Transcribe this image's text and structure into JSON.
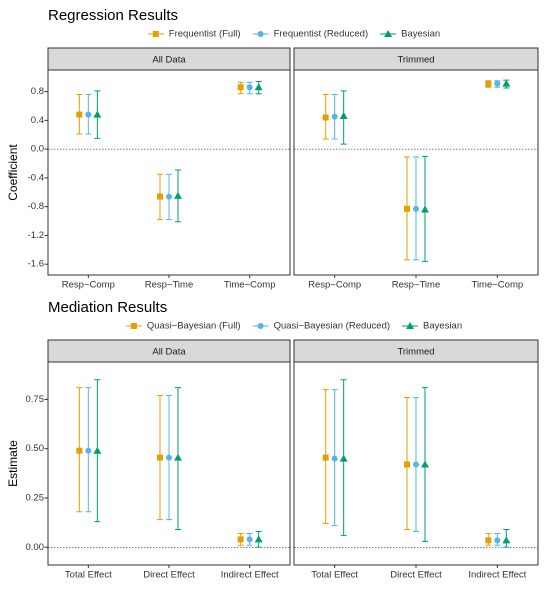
{
  "chart_data": [
    {
      "type": "pointrange",
      "title": "Regression Results",
      "ylabel": "Coefficient",
      "facets": [
        "All Data",
        "Trimmed"
      ],
      "categories": [
        "Resp~Comp",
        "Resp~Time",
        "Time~Comp"
      ],
      "ylim": [
        -1.75,
        1.1
      ],
      "yticks": [
        -1.6,
        -1.2,
        -0.8,
        -0.4,
        {
          "value": 0,
          "label": "0.0"
        },
        0.4,
        0.8
      ],
      "hline": 0,
      "series": [
        {
          "name": "Frequentist (Full)",
          "color": "#E69F00",
          "marker": "square",
          "values": [
            [
              0.48,
              -0.66,
              0.86
            ],
            [
              0.44,
              -0.83,
              0.91
            ]
          ],
          "lower": [
            [
              0.21,
              -0.98,
              0.77
            ],
            [
              0.14,
              -1.54,
              0.86
            ]
          ],
          "upper": [
            [
              0.76,
              -0.35,
              0.93
            ],
            [
              0.76,
              -0.11,
              0.95
            ]
          ]
        },
        {
          "name": "Frequentist (Reduced)",
          "color": "#56B4E9",
          "marker": "circle",
          "values": [
            [
              0.48,
              -0.66,
              0.86
            ],
            [
              0.45,
              -0.83,
              0.91
            ]
          ],
          "lower": [
            [
              0.21,
              -0.98,
              0.77
            ],
            [
              0.14,
              -1.54,
              0.86
            ]
          ],
          "upper": [
            [
              0.76,
              -0.35,
              0.93
            ],
            [
              0.76,
              -0.11,
              0.95
            ]
          ]
        },
        {
          "name": "Bayesian",
          "color": "#009E73",
          "marker": "triangle",
          "values": [
            [
              0.48,
              -0.65,
              0.86
            ],
            [
              0.46,
              -0.84,
              0.91
            ]
          ],
          "lower": [
            [
              0.15,
              -1.01,
              0.77
            ],
            [
              0.07,
              -1.56,
              0.85
            ]
          ],
          "upper": [
            [
              0.81,
              -0.29,
              0.94
            ],
            [
              0.81,
              -0.1,
              0.96
            ]
          ]
        }
      ]
    },
    {
      "type": "pointrange",
      "title": "Mediation Results",
      "ylabel": "Estimate",
      "facets": [
        "All Data",
        "Trimmed"
      ],
      "categories": [
        "Total Effect",
        "Direct Effect",
        "Indirect Effect"
      ],
      "ylim": [
        -0.09,
        0.94
      ],
      "yticks": [
        {
          "value": 0,
          "label": "0.00"
        },
        0.25,
        {
          "value": 0.5,
          "label": "0.50"
        },
        0.75
      ],
      "hline": 0,
      "series": [
        {
          "name": "Quasi−Bayesian (Full)",
          "color": "#E69F00",
          "marker": "square",
          "values": [
            [
              0.49,
              0.455,
              0.04
            ],
            [
              0.455,
              0.42,
              0.035
            ]
          ],
          "lower": [
            [
              0.18,
              0.14,
              0.01
            ],
            [
              0.12,
              0.09,
              0.01
            ]
          ],
          "upper": [
            [
              0.81,
              0.77,
              0.07
            ],
            [
              0.8,
              0.76,
              0.07
            ]
          ]
        },
        {
          "name": "Quasi−Bayesian (Reduced)",
          "color": "#56B4E9",
          "marker": "circle",
          "values": [
            [
              0.49,
              0.455,
              0.04
            ],
            [
              0.45,
              0.42,
              0.035
            ]
          ],
          "lower": [
            [
              0.18,
              0.14,
              0.01
            ],
            [
              0.11,
              0.08,
              0.01
            ]
          ],
          "upper": [
            [
              0.81,
              0.77,
              0.07
            ],
            [
              0.8,
              0.76,
              0.07
            ]
          ]
        },
        {
          "name": "Bayesian",
          "color": "#009E73",
          "marker": "triangle",
          "values": [
            [
              0.49,
              0.455,
              0.04
            ],
            [
              0.45,
              0.42,
              0.035
            ]
          ],
          "lower": [
            [
              0.13,
              0.09,
              0.0
            ],
            [
              0.06,
              0.03,
              0.0
            ]
          ],
          "upper": [
            [
              0.85,
              0.81,
              0.08
            ],
            [
              0.85,
              0.81,
              0.09
            ]
          ]
        }
      ]
    }
  ]
}
